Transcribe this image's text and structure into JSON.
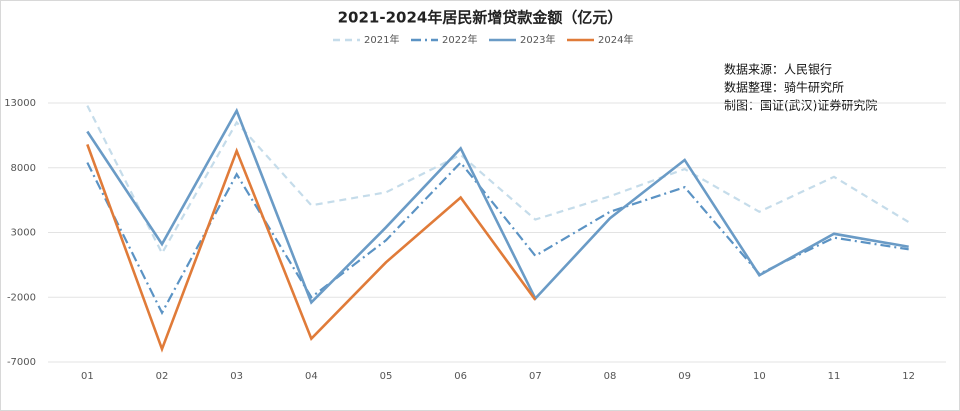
{
  "chart_data": {
    "type": "line",
    "title": "2021-2024年居民新增贷款金额（亿元）",
    "annotations": [
      "数据来源：人民银行",
      "数据整理：骑牛研究所",
      "制图：国证(武汉)证券研究院"
    ],
    "categories": [
      "01",
      "02",
      "03",
      "04",
      "05",
      "06",
      "07",
      "08",
      "09",
      "10",
      "11",
      "12"
    ],
    "series": [
      {
        "name": "2021年",
        "color": "#c5dcea",
        "style": "dashed",
        "values": [
          12800,
          1400,
          11500,
          5100,
          6100,
          9000,
          4000,
          5800,
          7900,
          4600,
          7300,
          3800
        ]
      },
      {
        "name": "2022年",
        "color": "#5b93c4",
        "style": "dashdot",
        "values": [
          8400,
          -3200,
          7500,
          -2000,
          2400,
          8400,
          1200,
          4600,
          6500,
          -200,
          2600,
          1700
        ]
      },
      {
        "name": "2023年",
        "color": "#6a9bc6",
        "style": "solid",
        "values": [
          10800,
          2100,
          12400,
          -2400,
          3400,
          9500,
          -2100,
          4100,
          8600,
          -300,
          2900,
          1900
        ]
      },
      {
        "name": "2024年",
        "color": "#e07b39",
        "style": "solid",
        "values": [
          9800,
          -6000,
          9300,
          -5200,
          700,
          5700,
          -2200,
          null,
          null,
          null,
          null,
          null
        ]
      }
    ],
    "ylim": [
      -7000,
      13000
    ],
    "yticks": [
      -7000,
      -2000,
      3000,
      8000,
      13000
    ],
    "grid": true
  }
}
